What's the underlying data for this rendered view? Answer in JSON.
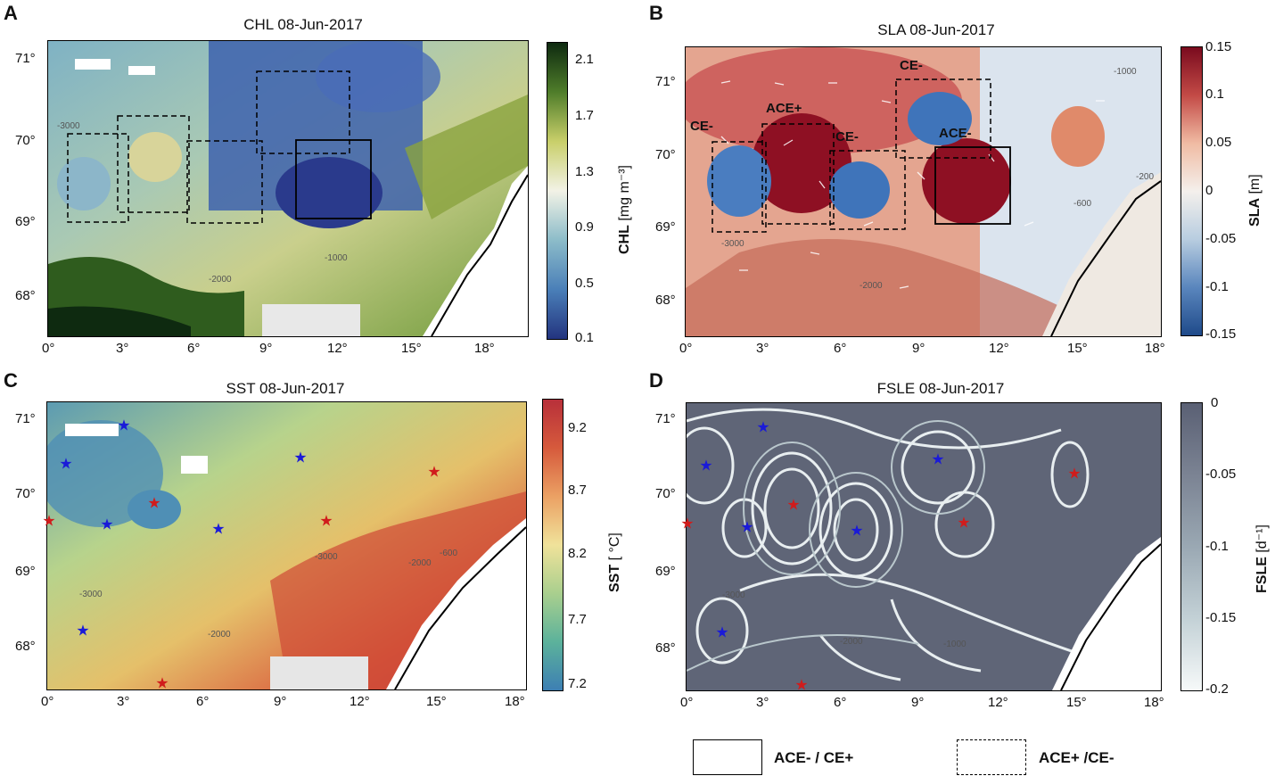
{
  "panels": {
    "a": {
      "letter": "A",
      "title": "CHL 08-Jun-2017",
      "cb_label": "CHL",
      "cb_unit": "[mg m⁻³]",
      "cb_ticks": [
        "2.1",
        "1.7",
        "1.3",
        "0.9",
        "0.5",
        "0.1"
      ]
    },
    "b": {
      "letter": "B",
      "title": "SLA 08-Jun-2017",
      "cb_label": "SLA",
      "cb_unit": "[m]",
      "cb_ticks": [
        "0.15",
        "0.1",
        "0.05",
        "0",
        "-0.05",
        "-0.1",
        "-0.15"
      ],
      "box_labels": {
        "ce1": "CE-",
        "ace1": "ACE+",
        "ce2": "CE-",
        "ce3": "CE-",
        "ace2": "ACE-"
      }
    },
    "c": {
      "letter": "C",
      "title": "SST 08-Jun-2017",
      "cb_label": "SST",
      "cb_unit": "[ °C]",
      "cb_ticks": [
        "9.2",
        "8.7",
        "8.2",
        "7.7",
        "7.2"
      ]
    },
    "d": {
      "letter": "D",
      "title": "FSLE 08-Jun-2017",
      "cb_label": "FSLE",
      "cb_unit": "[d⁻¹]",
      "cb_ticks": [
        "0",
        "-0.05",
        "-0.1",
        "-0.15",
        "-0.2"
      ]
    }
  },
  "axes": {
    "lon_ticks": [
      "0°",
      "3°",
      "6°",
      "9°",
      "12°",
      "15°",
      "18°"
    ],
    "lat_ticks": [
      "71°",
      "70°",
      "69°",
      "68°"
    ]
  },
  "contours": {
    "c3000": "-3000",
    "c2000": "-2000",
    "c1000": "-1000",
    "c600": "-600",
    "c200": "-200"
  },
  "legend": {
    "solid": "ACE- / CE+",
    "dashed": "ACE+ /CE-"
  },
  "colors": {
    "ace": "#d01c1c",
    "ce": "#1a1ad8",
    "chl_low": "#2a3a8c",
    "chl_high": "#0e2a10",
    "sla_pos": "#8e1023",
    "sla_neg": "#2a5a9e"
  },
  "stars": {
    "red": "★",
    "blue": "★"
  }
}
